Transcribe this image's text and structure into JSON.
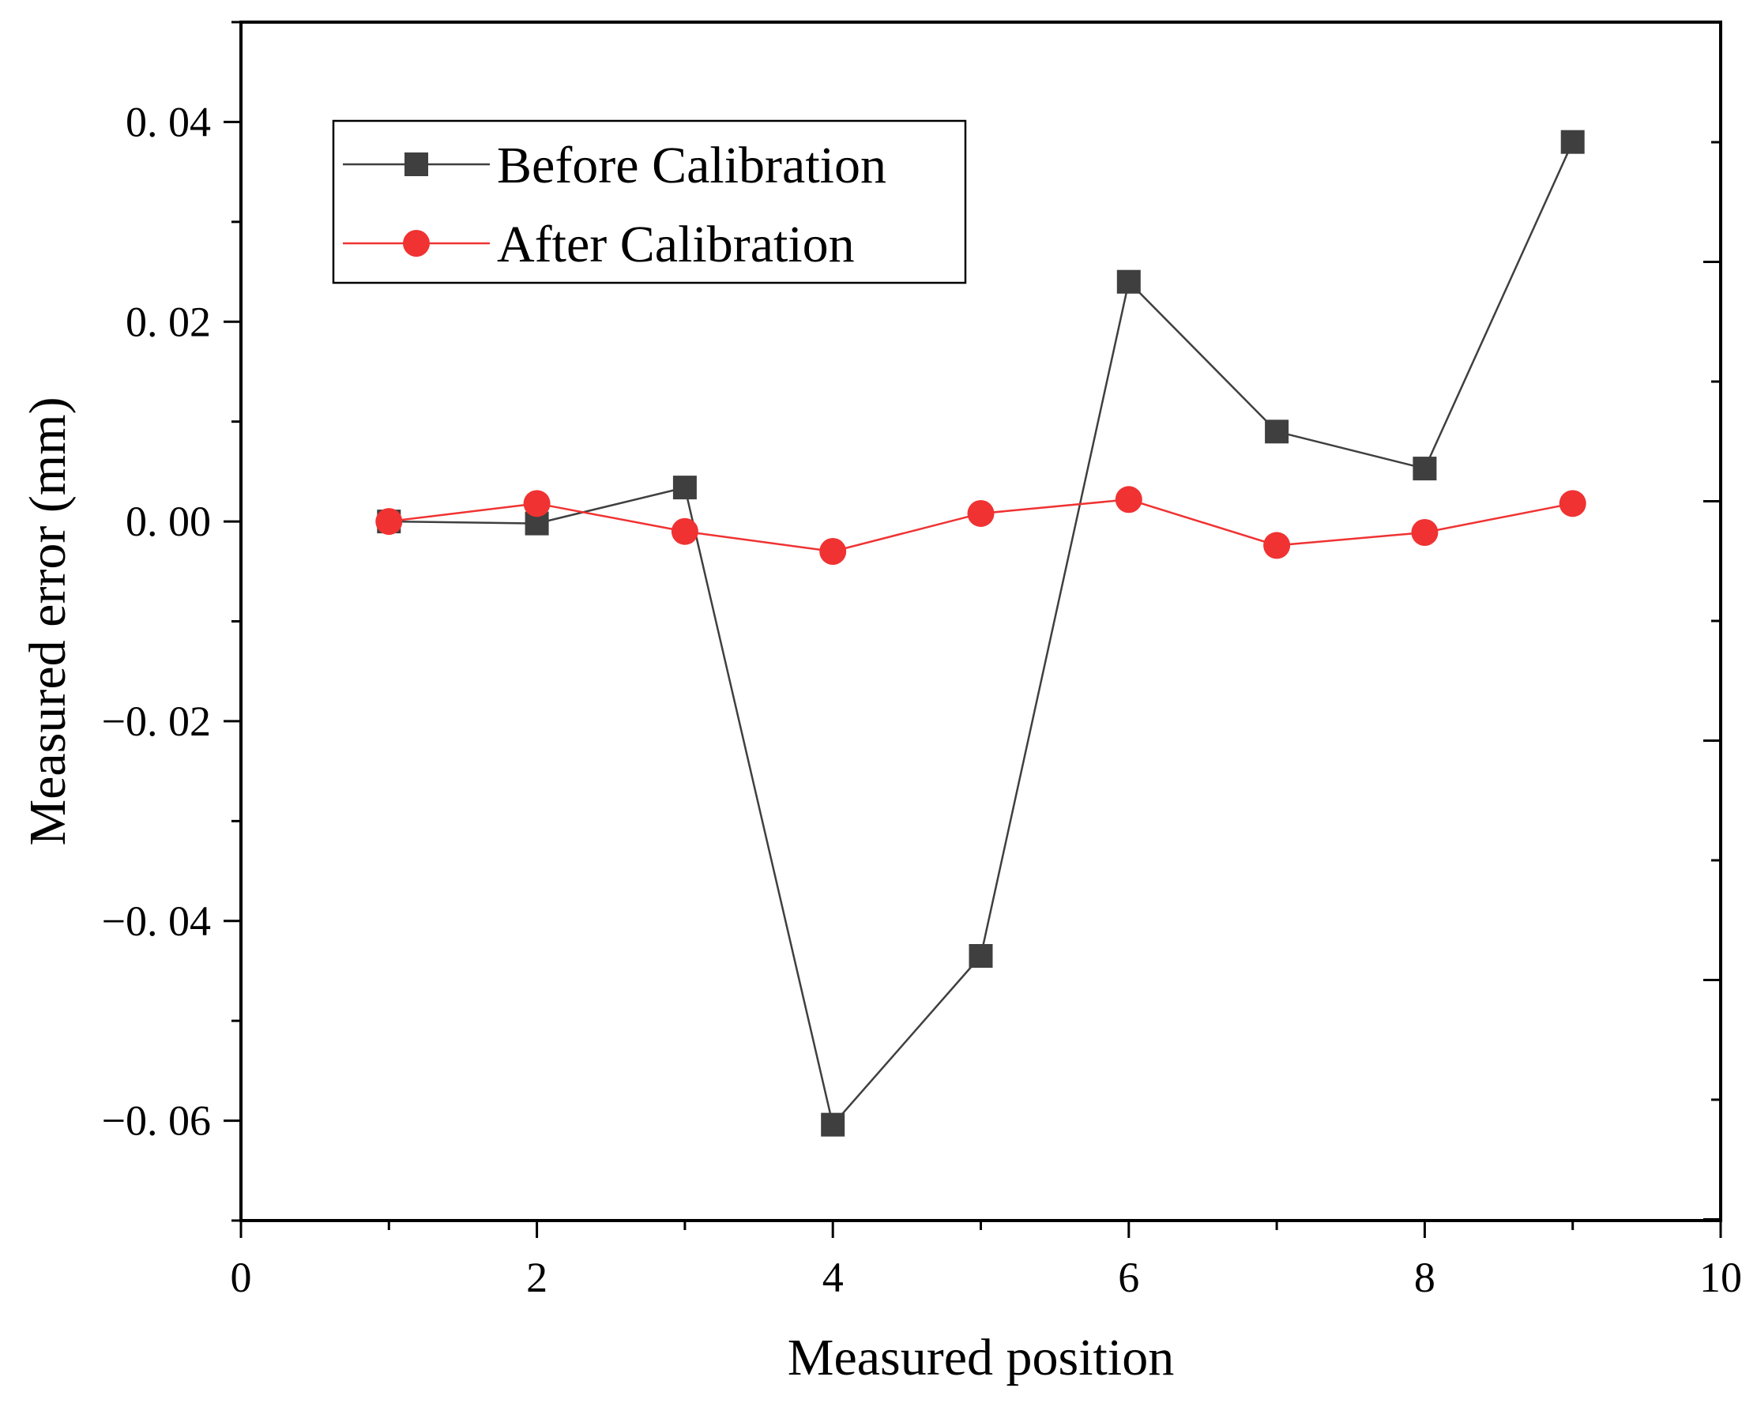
{
  "chart_data": {
    "type": "line",
    "title": "",
    "xlabel": "Measured position",
    "ylabel": "Measured error (mm)",
    "xlim": [
      0,
      10
    ],
    "ylim": [
      -0.07,
      0.05
    ],
    "x_ticks": [
      0,
      2,
      4,
      6,
      8,
      10
    ],
    "x_tick_labels": [
      "0",
      "2",
      "4",
      "6",
      "8",
      "10"
    ],
    "y_ticks": [
      -0.06,
      -0.04,
      -0.02,
      0.0,
      0.02,
      0.04
    ],
    "y_tick_labels": [
      "−0. 06",
      "−0. 04",
      "−0. 02",
      "0. 00",
      "0. 02",
      "0. 04"
    ],
    "grid": false,
    "legend_position": "top-left",
    "x": [
      1,
      2,
      3,
      4,
      5,
      6,
      7,
      8,
      9
    ],
    "series": [
      {
        "name": "Before Calibration",
        "marker": "square",
        "color": "#3f3f3f",
        "values": [
          0.0,
          -0.0002,
          0.0034,
          -0.0604,
          -0.0435,
          0.024,
          0.009,
          0.0053,
          0.038
        ]
      },
      {
        "name": "After Calibration",
        "marker": "circle",
        "color": "#f03232",
        "values": [
          0.0,
          0.0018,
          -0.001,
          -0.003,
          0.0008,
          0.0022,
          -0.0024,
          -0.0011,
          0.0018
        ]
      }
    ]
  }
}
